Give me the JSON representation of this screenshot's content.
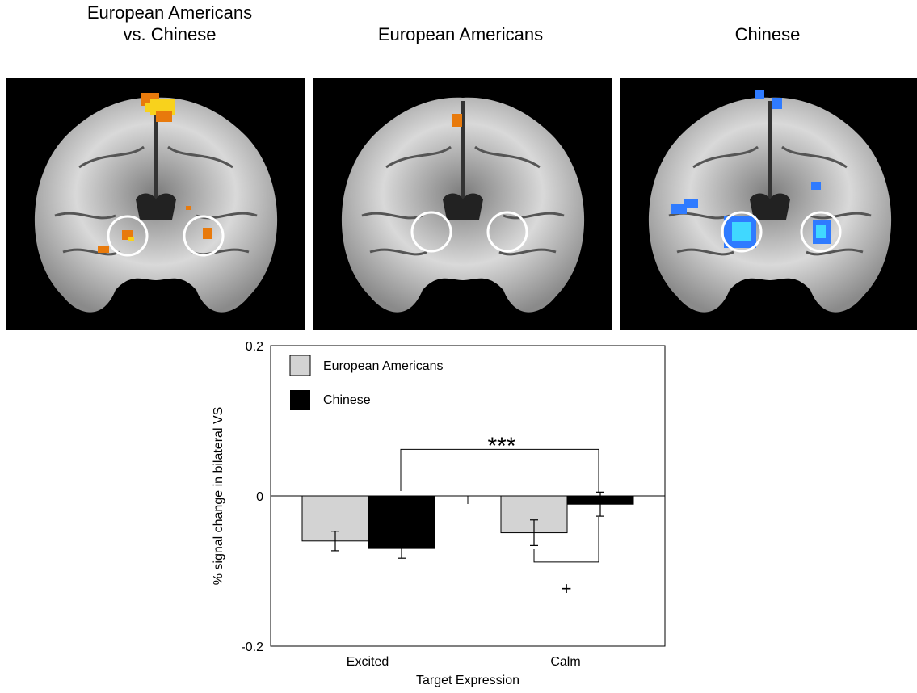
{
  "panels": [
    {
      "title_line1": "European Americans",
      "title_line2": "vs. Chinese",
      "overlay": "warm"
    },
    {
      "title_line1": "European Americans",
      "title_line2": "",
      "overlay": "warm-sparse"
    },
    {
      "title_line1": "Chinese",
      "title_line2": "",
      "overlay": "cool"
    }
  ],
  "colors": {
    "european_americans_bar": "#d3d3d3",
    "chinese_bar": "#000000",
    "activation_warm": "#e87a0c",
    "activation_hot": "#f8d21c",
    "activation_cool": "#2f7bff",
    "activation_cyan": "#40d8ff"
  },
  "chart_data": {
    "type": "bar",
    "categories": [
      "Excited",
      "Calm"
    ],
    "series": [
      {
        "name": "European Americans",
        "values": [
          -0.06,
          -0.049
        ],
        "errors": [
          0.013,
          0.017
        ],
        "color": "#d3d3d3"
      },
      {
        "name": "Chinese",
        "values": [
          -0.07,
          -0.011
        ],
        "errors": [
          0.013,
          0.016
        ],
        "color": "#000000"
      }
    ],
    "xlabel": "Target Expression",
    "ylabel": "% signal change in bilateral VS",
    "ylim": [
      -0.2,
      0.2
    ],
    "yticks": [
      "0.2",
      "0",
      "-0.2"
    ],
    "legend": [
      "European Americans",
      "Chinese"
    ],
    "legend_position": "top-left",
    "annotations": [
      {
        "text": "***",
        "between": "Excited Chinese vs Calm Chinese"
      },
      {
        "text": "+",
        "between": "Calm European Americans vs Calm Chinese"
      }
    ]
  }
}
